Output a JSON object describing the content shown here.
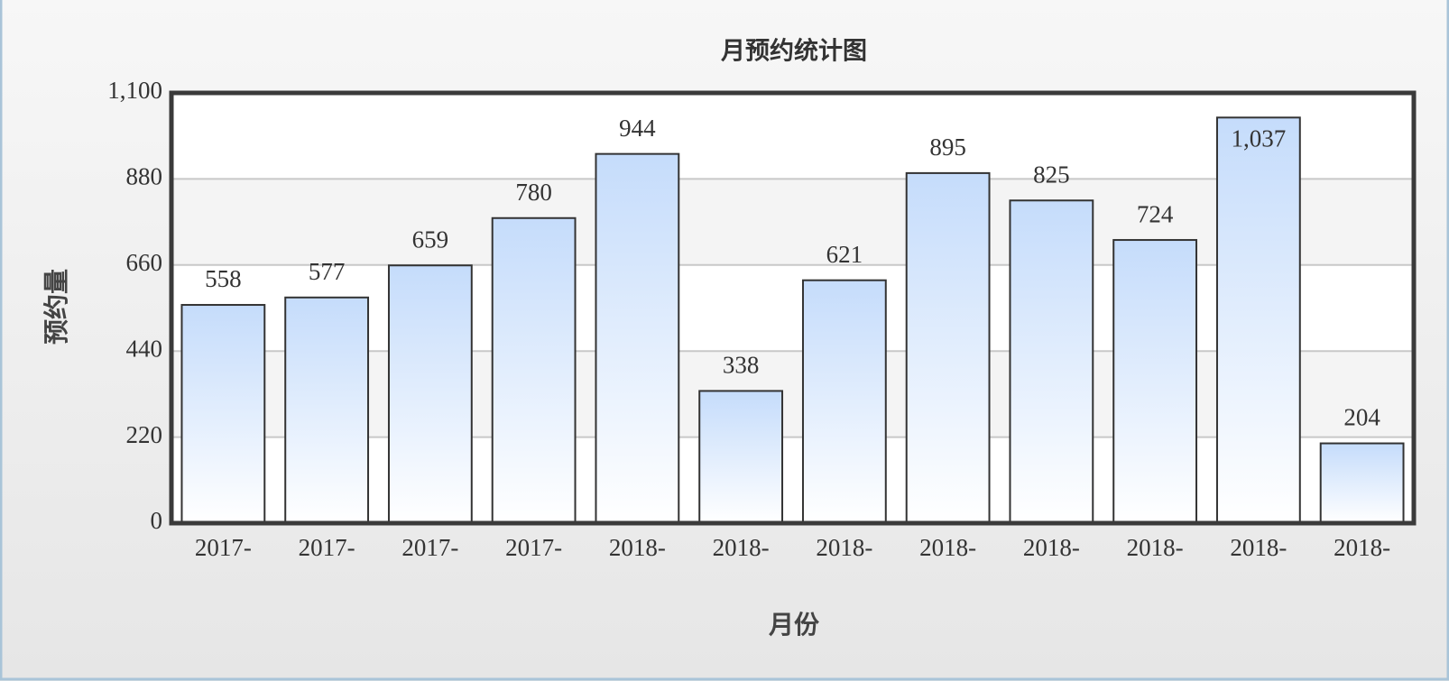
{
  "chart_data": {
    "type": "bar",
    "title": "月预约统计图",
    "x_label": "月份",
    "y_label": "预约量",
    "categories": [
      "2017-",
      "2017-",
      "2017-",
      "2017-",
      "2018-",
      "2018-",
      "2018-",
      "2018-",
      "2018-",
      "2018-",
      "2018-",
      "2018-"
    ],
    "values": [
      558,
      577,
      659,
      780,
      944,
      338,
      621,
      895,
      825,
      724,
      1037,
      204
    ],
    "value_labels": [
      "558",
      "577",
      "659",
      "780",
      "944",
      "338",
      "621",
      "895",
      "825",
      "724",
      "1,037",
      "204"
    ],
    "color": "#c5dcfb",
    "ylim": [
      0,
      1100
    ],
    "yticks": [
      0,
      220,
      440,
      660,
      880,
      {
        "value": 1100,
        "label": "1,100"
      }
    ],
    "grid": true
  }
}
